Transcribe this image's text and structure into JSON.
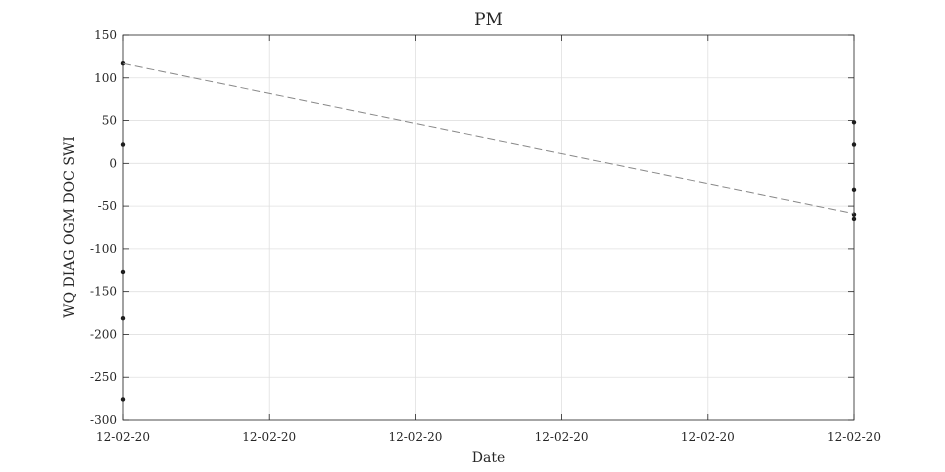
{
  "chart_data": {
    "type": "line",
    "title": "PM",
    "xlabel": "Date",
    "ylabel": "WQ DIAG OGM DOC SWI",
    "ylim": [
      -300,
      150
    ],
    "yticks": [
      150,
      100,
      50,
      0,
      -50,
      -100,
      -150,
      -200,
      -250,
      -300
    ],
    "xlim": [
      0,
      5
    ],
    "xticks": [
      0,
      1,
      2,
      3,
      4,
      5
    ],
    "xtick_labels": [
      "12-02-20",
      "12-02-20",
      "12-02-20",
      "12-02-20",
      "12-02-20",
      "12-02-20"
    ],
    "grid": true,
    "series": [
      {
        "style": "markers",
        "color": "#1a1a1a",
        "points": [
          {
            "x": 0,
            "y": 117
          },
          {
            "x": 0,
            "y": 22
          },
          {
            "x": 0,
            "y": -127
          },
          {
            "x": 0,
            "y": -181
          },
          {
            "x": 0,
            "y": -276
          }
        ]
      },
      {
        "style": "markers",
        "color": "#1a1a1a",
        "points": [
          {
            "x": 5,
            "y": 48
          },
          {
            "x": 5,
            "y": 22
          },
          {
            "x": 5,
            "y": -31
          },
          {
            "x": 5,
            "y": -60
          },
          {
            "x": 5,
            "y": -65
          }
        ]
      },
      {
        "style": "dashed",
        "color": "#888888",
        "points": [
          {
            "x": 0,
            "y": 117
          },
          {
            "x": 5,
            "y": -59
          }
        ]
      }
    ]
  }
}
